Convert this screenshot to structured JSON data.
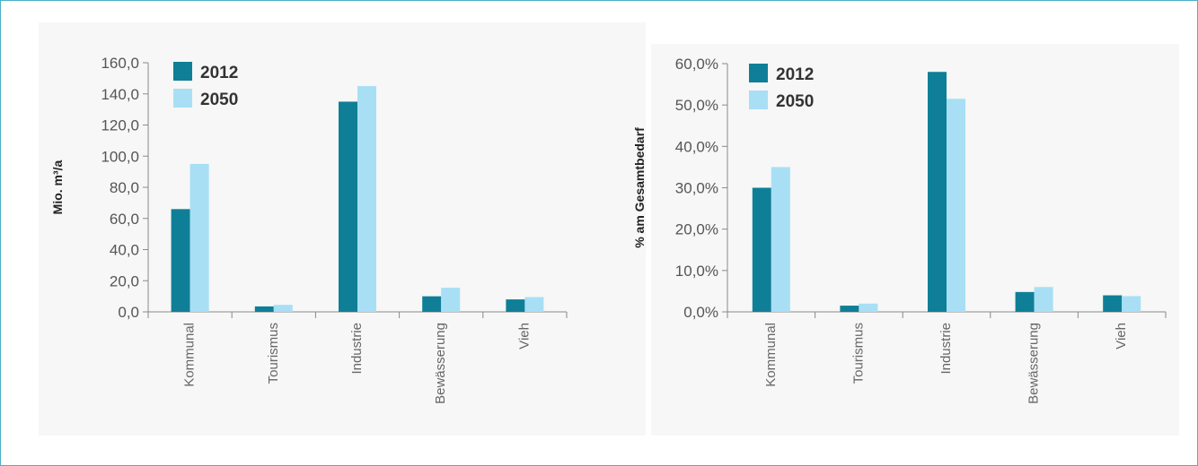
{
  "colors": {
    "s2012": "#0f7f97",
    "s2050": "#a8dff5"
  },
  "chart_data": [
    {
      "type": "bar",
      "categories": [
        "Kommunal",
        "Tourismus",
        "Industrie",
        "Bewässerung",
        "Vieh"
      ],
      "series": [
        {
          "name": "2012",
          "values": [
            66,
            3.5,
            135,
            10,
            8
          ]
        },
        {
          "name": "2050",
          "values": [
            95,
            4.5,
            145,
            15.5,
            9.5
          ]
        }
      ],
      "title": "",
      "xlabel": "",
      "ylabel": "Mio. m³/a",
      "ylim": [
        0,
        160
      ],
      "yticks": [
        "0,0",
        "20,0",
        "40,0",
        "60,0",
        "80,0",
        "100,0",
        "120,0",
        "140,0",
        "160,0"
      ],
      "legend": "top-left",
      "grid": false
    },
    {
      "type": "bar",
      "categories": [
        "Kommunal",
        "Tourismus",
        "Industrie",
        "Bewässerung",
        "Vieh"
      ],
      "series": [
        {
          "name": "2012",
          "values": [
            30,
            1.5,
            58,
            4.8,
            4
          ]
        },
        {
          "name": "2050",
          "values": [
            35,
            2,
            51.5,
            6,
            3.8
          ]
        }
      ],
      "title": "",
      "xlabel": "",
      "ylabel": "% am Gesamtbedarf",
      "ylim": [
        0,
        60
      ],
      "yticks": [
        "0,0%",
        "10,0%",
        "20,0%",
        "30,0%",
        "40,0%",
        "50,0%",
        "60,0%"
      ],
      "legend": "top-left",
      "grid": false
    }
  ]
}
